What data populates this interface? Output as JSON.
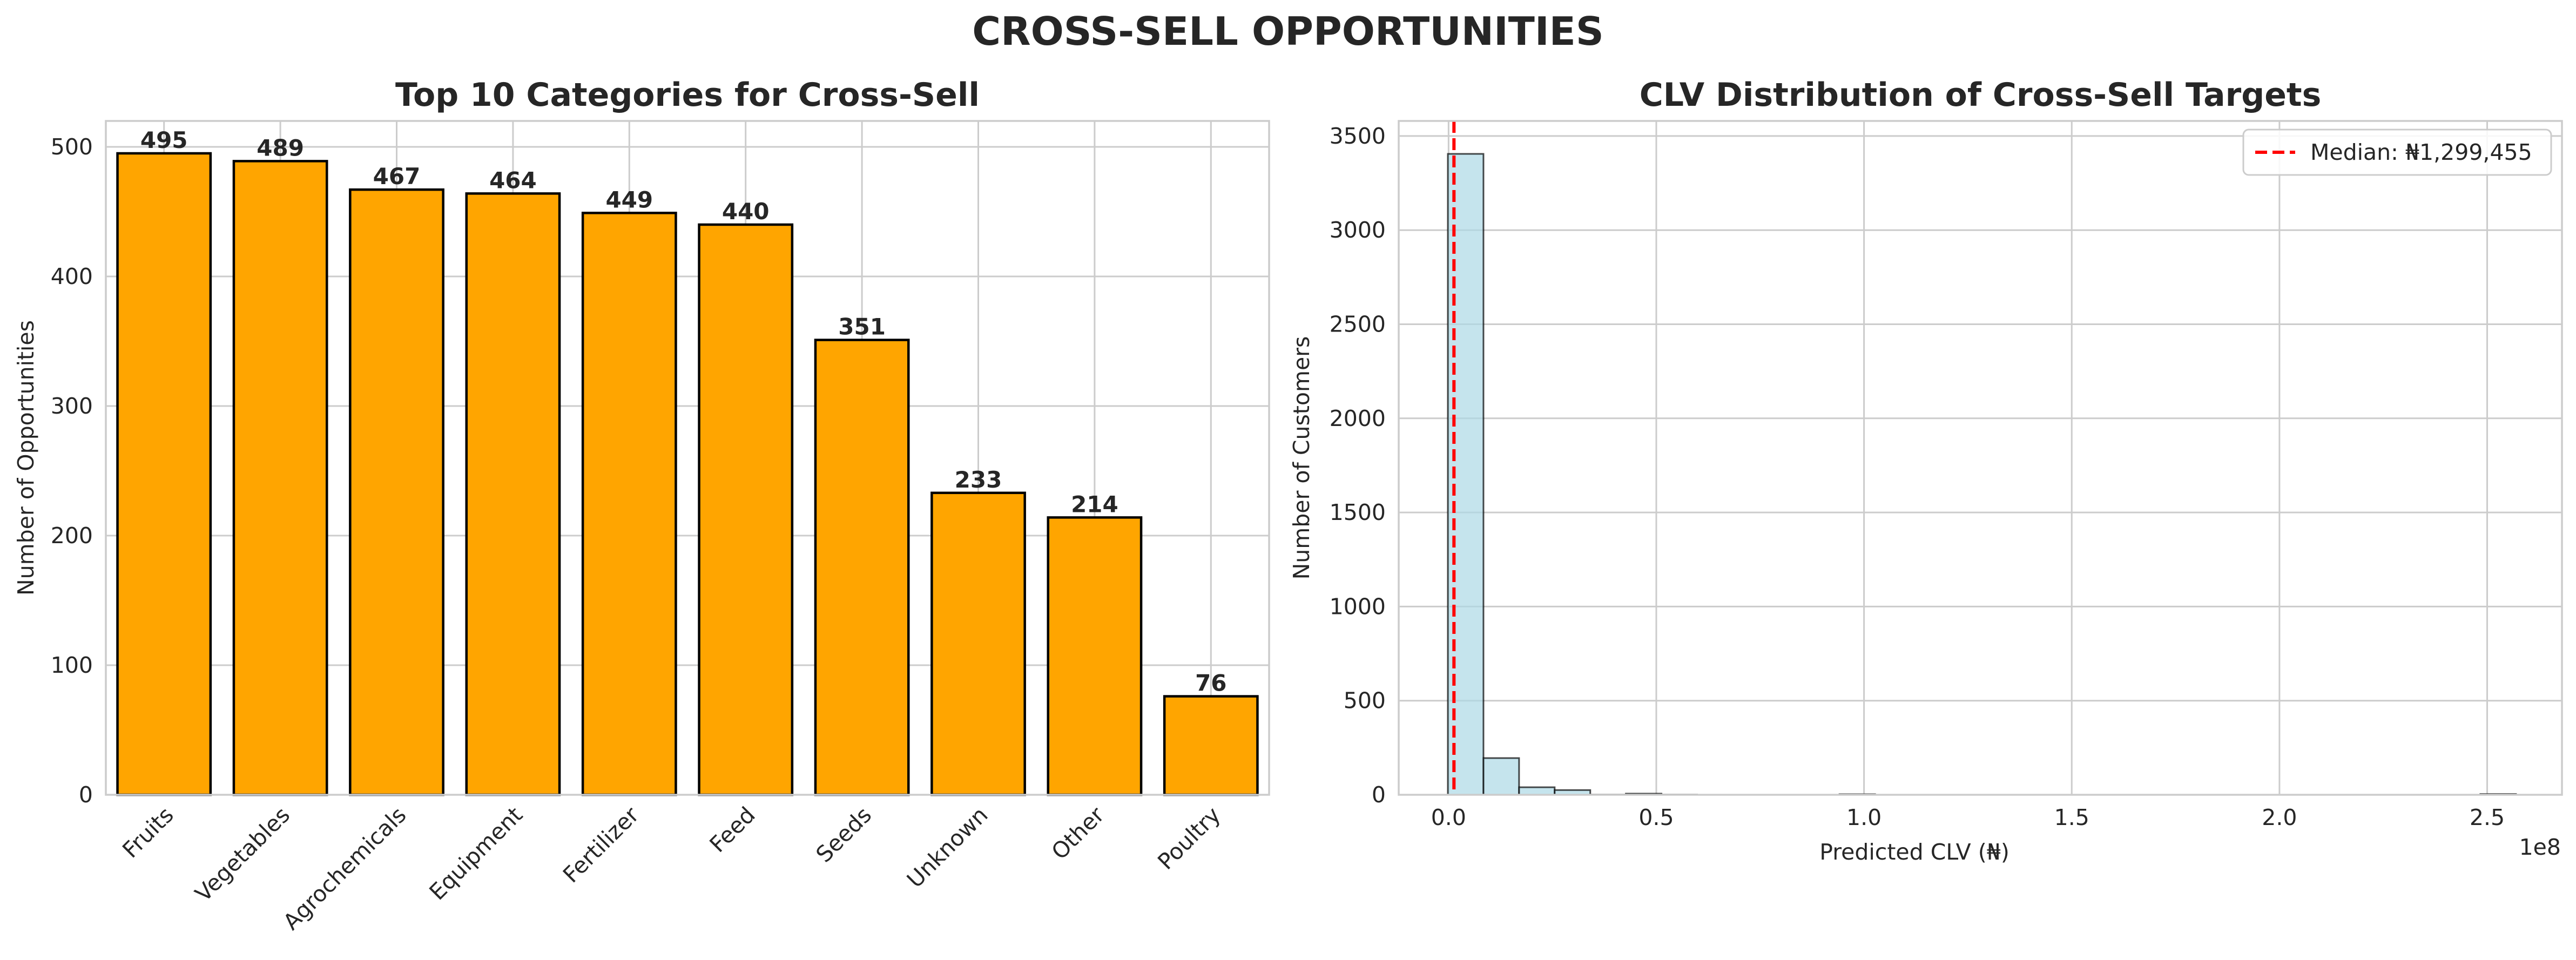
{
  "suptitle": "CROSS-SELL OPPORTUNITIES",
  "chart_data": [
    {
      "type": "bar",
      "title": "Top 10 Categories for Cross-Sell",
      "xlabel": "",
      "ylabel": "Number of Opportunities",
      "categories": [
        "Fruits",
        "Vegetables",
        "Agrochemicals",
        "Equipment",
        "Fertilizer",
        "Feed",
        "Seeds",
        "Unknown",
        "Other",
        "Poultry"
      ],
      "values": [
        495,
        489,
        467,
        464,
        449,
        440,
        351,
        233,
        214,
        76
      ],
      "data_labels": [
        "495",
        "489",
        "467",
        "464",
        "449",
        "440",
        "351",
        "233",
        "214",
        "76"
      ],
      "ylim": [
        0,
        520
      ],
      "yticks": [
        0,
        100,
        200,
        300,
        400,
        500
      ],
      "ytick_labels": [
        "0",
        "100",
        "200",
        "300",
        "400",
        "500"
      ],
      "bar_color": "#FFA500",
      "edge_color": "#000000",
      "grid": true
    },
    {
      "type": "bar",
      "subtype": "histogram",
      "title": "CLV Distribution of Cross-Sell Targets",
      "xlabel": "Predicted CLV (₦)",
      "ylabel": "Number of Customers",
      "x_offset_label": "1e8",
      "bin_edges": [
        -170000,
        8400000,
        16970000,
        25540000,
        34110000,
        42680000,
        51250000,
        59820000,
        68390000,
        76960000,
        85530000,
        94100000,
        102670000,
        111240000,
        119810000,
        128380000,
        136950000,
        145520000,
        154090000,
        162660000,
        171230000,
        179800000,
        188370000,
        196940000,
        205510000,
        214080000,
        222650000,
        231220000,
        239790000,
        248360000,
        256930000
      ],
      "counts": [
        3405,
        195,
        40,
        25,
        1,
        6,
        1,
        0,
        0,
        0,
        0,
        3,
        0,
        0,
        0,
        0,
        0,
        0,
        0,
        0,
        0,
        0,
        0,
        0,
        0,
        0,
        0,
        0,
        0,
        4
      ],
      "xlim": [
        -12000000,
        268000000
      ],
      "ylim": [
        0,
        3580
      ],
      "xticks": [
        0,
        50000000,
        100000000,
        150000000,
        200000000,
        250000000
      ],
      "xtick_labels": [
        "0.0",
        "0.5",
        "1.0",
        "1.5",
        "2.0",
        "2.5"
      ],
      "yticks": [
        0,
        500,
        1000,
        1500,
        2000,
        2500,
        3000,
        3500
      ],
      "ytick_labels": [
        "0",
        "500",
        "1000",
        "1500",
        "2000",
        "2500",
        "3000",
        "3500"
      ],
      "bar_color": "#ADD8E6",
      "bar_alpha": 0.7,
      "edge_color": "#000000",
      "median": 1299455,
      "median_color": "#FF0000",
      "legend": [
        "Median: ₦1,299,455"
      ],
      "legend_position": "top-right",
      "grid": true
    }
  ]
}
